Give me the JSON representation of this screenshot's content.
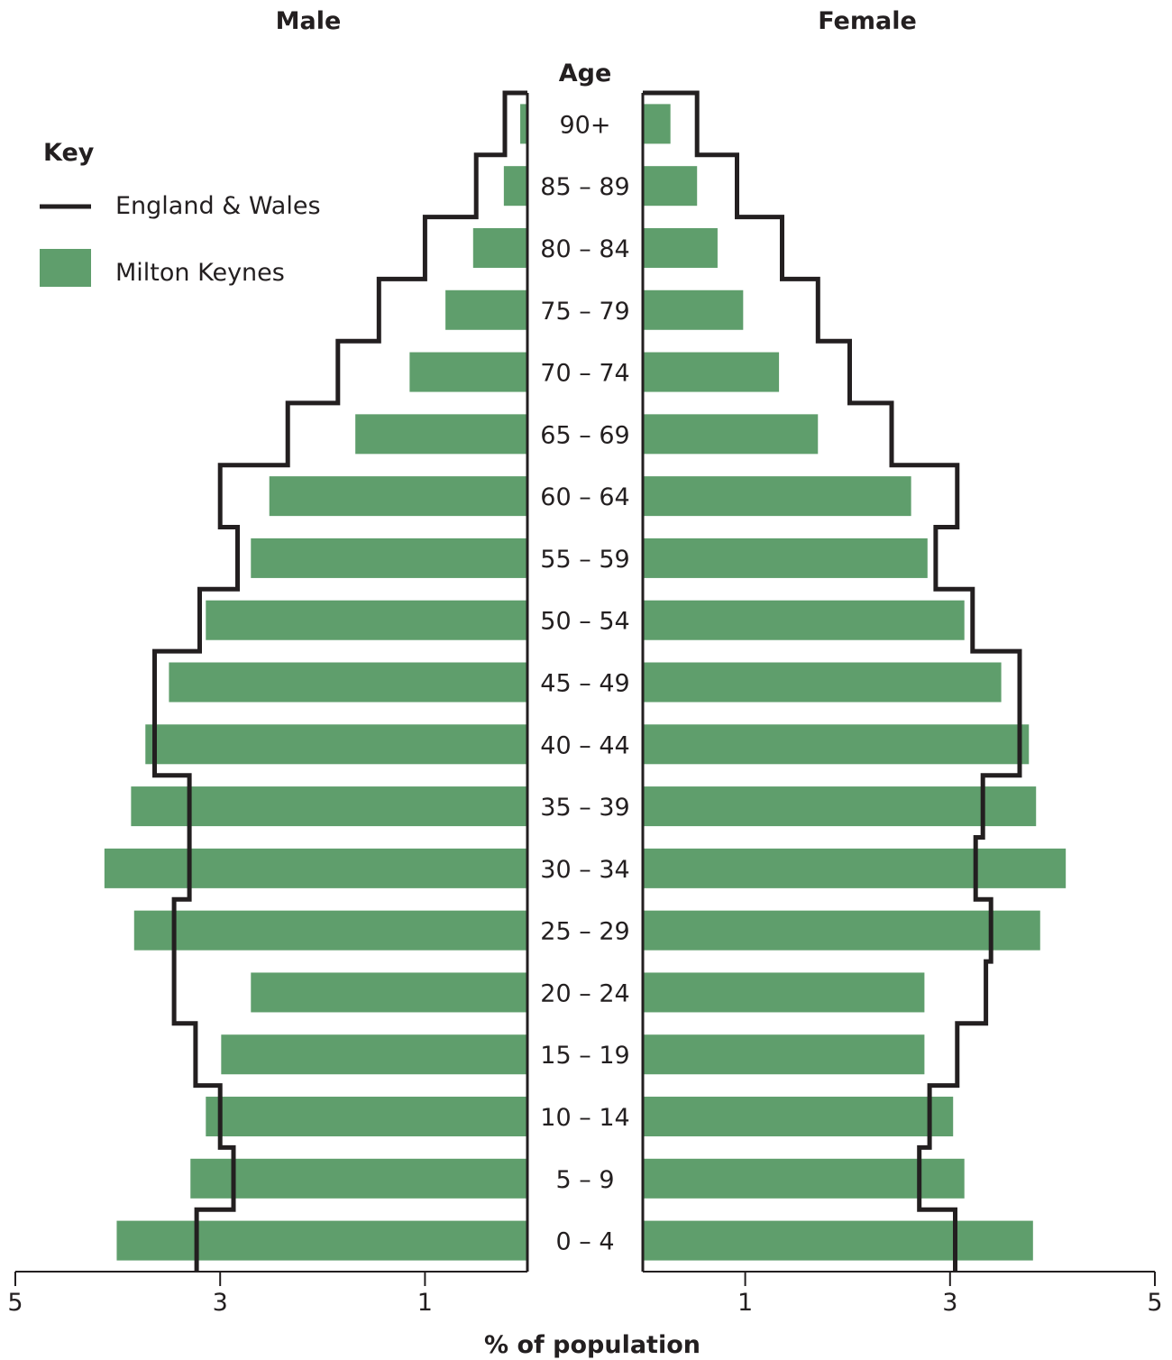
{
  "chart_data": {
    "type": "bar",
    "orientation": "horizontal",
    "subtype": "population-pyramid",
    "side_titles": {
      "left": "Male",
      "right": "Female"
    },
    "center_label": "Age",
    "xlabel": "% of population",
    "xlim": [
      0,
      5
    ],
    "x_ticks": [
      1,
      3,
      5
    ],
    "legend": {
      "title": "Key",
      "position": "top-left",
      "items": [
        {
          "label": "England & Wales",
          "style": "line"
        },
        {
          "label": "Milton Keynes",
          "style": "bar"
        }
      ]
    },
    "categories": [
      "90+",
      "85 – 89",
      "80 – 84",
      "75 – 79",
      "70 – 74",
      "65 – 69",
      "60 – 64",
      "55 – 59",
      "50 – 54",
      "45 – 49",
      "40 – 44",
      "35 – 39",
      "30 – 34",
      "25 – 29",
      "20 – 24",
      "15 – 19",
      "10 – 14",
      "5 – 9",
      "0 – 4"
    ],
    "series": [
      {
        "name": "Milton Keynes",
        "sex": "Male",
        "values": [
          0.07,
          0.23,
          0.53,
          0.8,
          1.15,
          1.68,
          2.52,
          2.7,
          3.14,
          3.5,
          3.73,
          3.87,
          4.13,
          3.84,
          2.7,
          2.99,
          3.14,
          3.29,
          4.01
        ]
      },
      {
        "name": "England & Wales",
        "sex": "Male",
        "values": [
          0.22,
          0.5,
          1.0,
          1.45,
          1.85,
          2.34,
          3.0,
          2.83,
          3.2,
          3.64,
          3.64,
          3.3,
          3.3,
          3.45,
          3.45,
          3.24,
          3.0,
          2.87,
          3.23
        ]
      },
      {
        "name": "Milton Keynes",
        "sex": "Female",
        "values": [
          0.27,
          0.53,
          0.73,
          0.98,
          1.33,
          1.71,
          2.62,
          2.78,
          3.14,
          3.5,
          3.77,
          3.84,
          4.13,
          3.88,
          2.75,
          2.75,
          3.03,
          3.14,
          3.81
        ]
      },
      {
        "name": "England & Wales",
        "sex": "Female",
        "values": [
          0.53,
          0.92,
          1.36,
          1.71,
          2.02,
          2.43,
          3.07,
          2.86,
          3.22,
          3.68,
          3.68,
          3.32,
          3.25,
          3.4,
          3.35,
          3.07,
          2.8,
          2.7,
          3.05
        ]
      }
    ],
    "colors": {
      "bars": "#5f9e6c",
      "outline": "#231f20"
    },
    "grid": false
  }
}
